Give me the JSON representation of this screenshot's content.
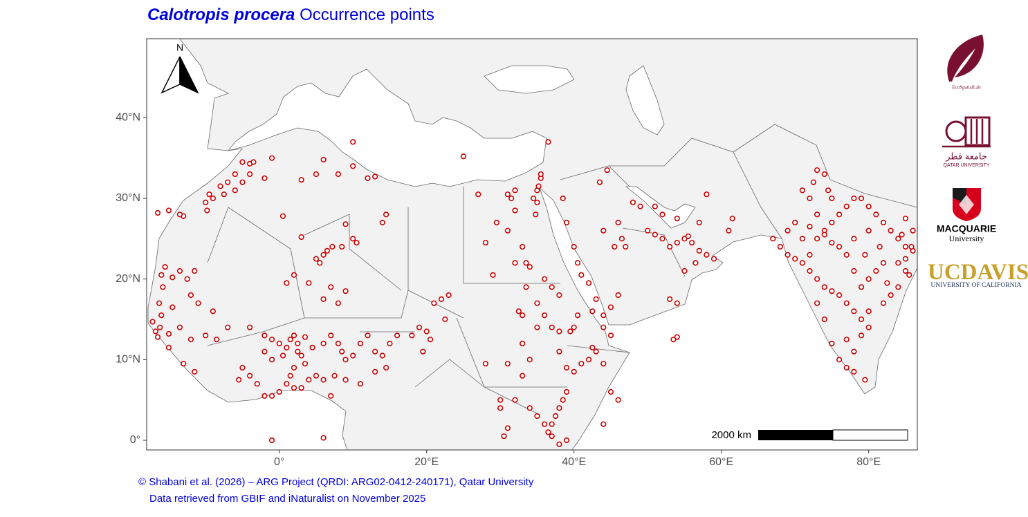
{
  "chart_data": {
    "type": "scatter",
    "title": [
      "Calotropis procera",
      "Occurrence points"
    ],
    "north_label": "N",
    "scale_bar_label": "2000 km",
    "credits": [
      "© Shabani et al. (2026) – ARG Project (QRDI: ARG02-0412-240171), Qatar University",
      "Data retrieved from GBIF and iNaturalist on November 2025"
    ],
    "xlim": [
      -18,
      86.6
    ],
    "ylim": [
      -1.2,
      49.8
    ],
    "xticks": [
      {
        "value": 0,
        "label": "0°"
      },
      {
        "value": 20,
        "label": "20°E"
      },
      {
        "value": 40,
        "label": "40°E"
      },
      {
        "value": 60,
        "label": "60°E"
      },
      {
        "value": 80,
        "label": "80°E"
      }
    ],
    "yticks": [
      {
        "value": 0,
        "label": "0°"
      },
      {
        "value": 10,
        "label": "10°N"
      },
      {
        "value": 20,
        "label": "20°N"
      },
      {
        "value": 30,
        "label": "30°N"
      },
      {
        "value": 40,
        "label": "40°N"
      }
    ],
    "x": [
      -17.2,
      -16.8,
      -16.5,
      -16,
      -16.3,
      -15.8,
      -16,
      -15.5,
      -14.5,
      -13.5,
      -12,
      -15,
      -13,
      -11.5,
      -12.5,
      -13.5,
      -14.5,
      -11.5,
      -10,
      -8.5,
      -7,
      -9,
      -11,
      -12,
      -15,
      -16.2,
      -9.5,
      -8,
      -7,
      -6,
      -5,
      -9,
      -10,
      -7.5,
      -6,
      -5,
      -4,
      -2,
      -4,
      -13,
      -15,
      -16.5,
      -13.5,
      -3.5,
      -1,
      -9.8,
      0.5,
      3,
      5,
      6,
      10,
      10,
      8,
      3,
      5,
      6,
      6.5,
      5.5,
      7.2,
      8.5,
      9,
      10,
      10.5,
      14,
      14.5,
      13,
      12,
      2,
      1,
      4,
      6,
      8,
      9,
      7,
      -4,
      -2,
      -1,
      0,
      1,
      1.5,
      2,
      2.5,
      3,
      3.5,
      2,
      1.5,
      1,
      2,
      3,
      4,
      0,
      -1,
      -2,
      -3,
      -4,
      -5,
      -5.5,
      -2,
      -1,
      0.5,
      2.5,
      3.5,
      4.5,
      6,
      7,
      8,
      8.5,
      9,
      10,
      11,
      12,
      13,
      14,
      15,
      16,
      14.5,
      13,
      11,
      9,
      7.5,
      6,
      5,
      7,
      6,
      -1,
      18,
      19,
      20,
      20.5,
      19.5,
      21,
      22,
      23,
      22.5,
      28,
      31,
      30,
      32,
      33,
      34,
      33,
      35,
      36,
      37,
      38,
      33,
      32.5,
      33.5,
      34,
      36,
      37,
      38,
      35,
      32,
      31.5,
      31,
      32,
      31,
      33,
      33.5,
      32,
      29,
      28,
      29.5,
      27,
      25,
      34.5,
      35,
      35.5,
      35.5,
      35.2,
      35,
      34.8,
      36.5,
      38,
      39,
      40,
      41,
      42,
      42.5,
      43,
      44,
      45,
      46,
      44,
      39,
      38.5,
      38,
      37.5,
      37,
      36.5,
      37,
      38,
      39,
      36,
      35,
      34,
      30,
      31,
      30.5,
      39.5,
      40.5,
      40,
      38.5,
      39,
      40,
      40.5,
      41,
      42,
      43,
      42.5,
      44,
      45,
      44,
      45,
      46,
      47,
      46.5,
      45.5,
      46,
      44,
      43.5,
      44.5,
      50,
      51,
      52,
      53,
      54,
      55,
      55.5,
      56,
      57,
      58,
      59,
      56.5,
      55,
      54,
      53,
      53.5,
      54,
      49,
      48,
      51,
      52,
      54,
      57,
      58,
      61,
      61.5,
      67,
      68,
      69,
      70,
      71,
      72,
      73,
      74,
      75,
      76,
      77,
      78,
      79,
      80,
      79,
      78,
      77,
      76,
      75,
      74,
      73,
      72,
      73,
      74,
      75,
      76,
      77,
      78,
      79,
      80,
      81,
      82,
      83,
      84,
      85,
      86,
      85.8,
      85,
      85,
      82,
      81,
      80,
      79,
      78,
      77,
      76,
      75,
      74,
      73,
      72,
      71,
      72.5,
      73,
      74,
      74.5,
      75,
      70,
      69,
      71,
      72,
      80,
      82,
      83,
      84,
      81.5,
      80,
      78,
      79.5,
      85,
      86,
      84.5,
      84,
      82.5,
      79.5,
      78,
      85.5,
      77
    ],
    "series": [
      {
        "color": "#cc0000",
        "values": [
          14.7,
          13.5,
          12.8,
          15.5,
          17,
          19,
          20.5,
          21.5,
          16.5,
          14,
          12.5,
          11.5,
          9.5,
          8.5,
          20,
          21,
          20.2,
          21,
          13,
          12.5,
          14,
          16,
          17,
          18,
          13.2,
          14,
          30.5,
          31.5,
          32,
          33,
          34.5,
          30,
          29.5,
          30.5,
          31,
          32,
          33,
          32.5,
          34.3,
          27.8,
          28.5,
          28.2,
          28,
          34.5,
          35,
          28.5,
          27.8,
          32.3,
          33,
          34.8,
          37,
          34,
          33,
          25.2,
          22.5,
          23,
          23.5,
          22,
          24,
          24,
          26.8,
          25,
          24.5,
          27,
          28,
          32.7,
          32.5,
          20.5,
          19.5,
          19.5,
          17.5,
          17,
          18.5,
          19,
          14,
          13,
          12.5,
          12,
          11.5,
          12.5,
          13,
          11,
          10.5,
          9.5,
          9,
          8,
          7,
          6.5,
          6.5,
          7.5,
          6,
          5.5,
          5.5,
          7,
          8,
          9,
          7.5,
          11,
          10,
          10.5,
          12,
          12.8,
          11.5,
          12,
          13,
          12,
          11,
          10,
          10.5,
          12,
          13,
          11,
          10.5,
          12,
          13,
          9,
          8.5,
          7,
          7.5,
          8,
          7.5,
          8,
          5.5,
          0.3,
          0,
          13,
          14,
          13.5,
          12.5,
          11,
          17,
          17.5,
          18,
          15,
          9.5,
          9.5,
          5,
          5,
          8,
          10,
          12,
          14,
          15.5,
          14,
          13.5,
          15.5,
          16,
          19,
          21.5,
          20,
          19,
          18,
          17,
          28.5,
          30,
          30.5,
          31,
          26,
          24,
          22,
          22,
          20.5,
          24.5,
          27,
          30.5,
          35.2,
          30,
          31,
          32.5,
          33,
          31.5,
          29.5,
          28,
          37,
          11,
          9,
          8.5,
          9.5,
          10,
          11.5,
          11,
          9.5,
          6,
          5,
          2,
          6,
          5,
          4,
          3,
          2,
          1,
          0.5,
          -0.5,
          0,
          2,
          3,
          4,
          4,
          1.5,
          0.5,
          13.5,
          15.5,
          14,
          30,
          27,
          24,
          22,
          20.5,
          19.5,
          17.5,
          16,
          14,
          13,
          15.5,
          16.5,
          18,
          24,
          25,
          24,
          27,
          26,
          32,
          33.5,
          26,
          25.5,
          25,
          24,
          24.5,
          25,
          25.3,
          24.5,
          23.5,
          23,
          22.5,
          22,
          21,
          17,
          17.5,
          12.5,
          12.8,
          29,
          29.5,
          29,
          28,
          27.5,
          27,
          30.5,
          26,
          27.5,
          25,
          24,
          23,
          22.5,
          22,
          21,
          20,
          19,
          18.5,
          18,
          17,
          16,
          15,
          14,
          13,
          11,
          9,
          10,
          12,
          15,
          17,
          23,
          25,
          26,
          27,
          28,
          29,
          30,
          30,
          29,
          28,
          27,
          26,
          25,
          24,
          23.5,
          24,
          22.5,
          27.5,
          22,
          21,
          20,
          19,
          21,
          23,
          24,
          24.5,
          25.5,
          28,
          30,
          31,
          32,
          33.5,
          33,
          31,
          30,
          27,
          26,
          25,
          26.5,
          16,
          17,
          18,
          19,
          24,
          26,
          25,
          23,
          21,
          26,
          25.5,
          22,
          19.5,
          7.5,
          8.5,
          20.5,
          12.5
        ]
      }
    ]
  },
  "logos": {
    "ecospatial": "EcoSpatialLab",
    "qatar_arabic": "جامعة قطر",
    "qatar": "QATAR UNIVERSITY",
    "macquarie": [
      "MACQUARIE",
      "University"
    ],
    "ucdavis": [
      "UC",
      "DAVIS",
      "UNIVERSITY OF CALIFORNIA"
    ]
  }
}
